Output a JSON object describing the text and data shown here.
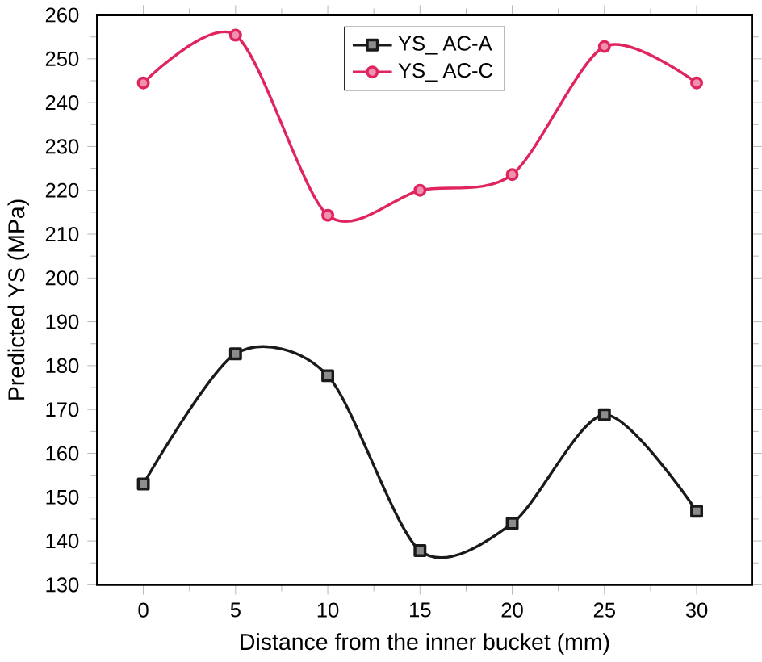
{
  "chart_data": {
    "type": "line",
    "xlabel": "Distance from the inner bucket (mm)",
    "ylabel": "Predicted YS (MPa)",
    "x": [
      0,
      5,
      10,
      15,
      20,
      25,
      30
    ],
    "series": [
      {
        "name": "YS_ AC-A",
        "color": "#1a1a1a",
        "marker": "square",
        "values": [
          153,
          182.7,
          177.7,
          137.8,
          144,
          168.8,
          146.8
        ]
      },
      {
        "name": "YS_ AC-C",
        "color": "#e0245e",
        "marker": "circle",
        "values": [
          244.5,
          255.4,
          214.3,
          220,
          223.6,
          252.8,
          244.5
        ]
      }
    ],
    "xlim": [
      -2.5,
      33
    ],
    "xticks": [
      0,
      5,
      10,
      15,
      20,
      25,
      30
    ],
    "ylim": [
      130,
      260
    ],
    "yticks": [
      130,
      140,
      150,
      160,
      170,
      180,
      190,
      200,
      210,
      220,
      230,
      240,
      250,
      260
    ],
    "legend": "top",
    "grid": false,
    "line_style": "solid"
  }
}
